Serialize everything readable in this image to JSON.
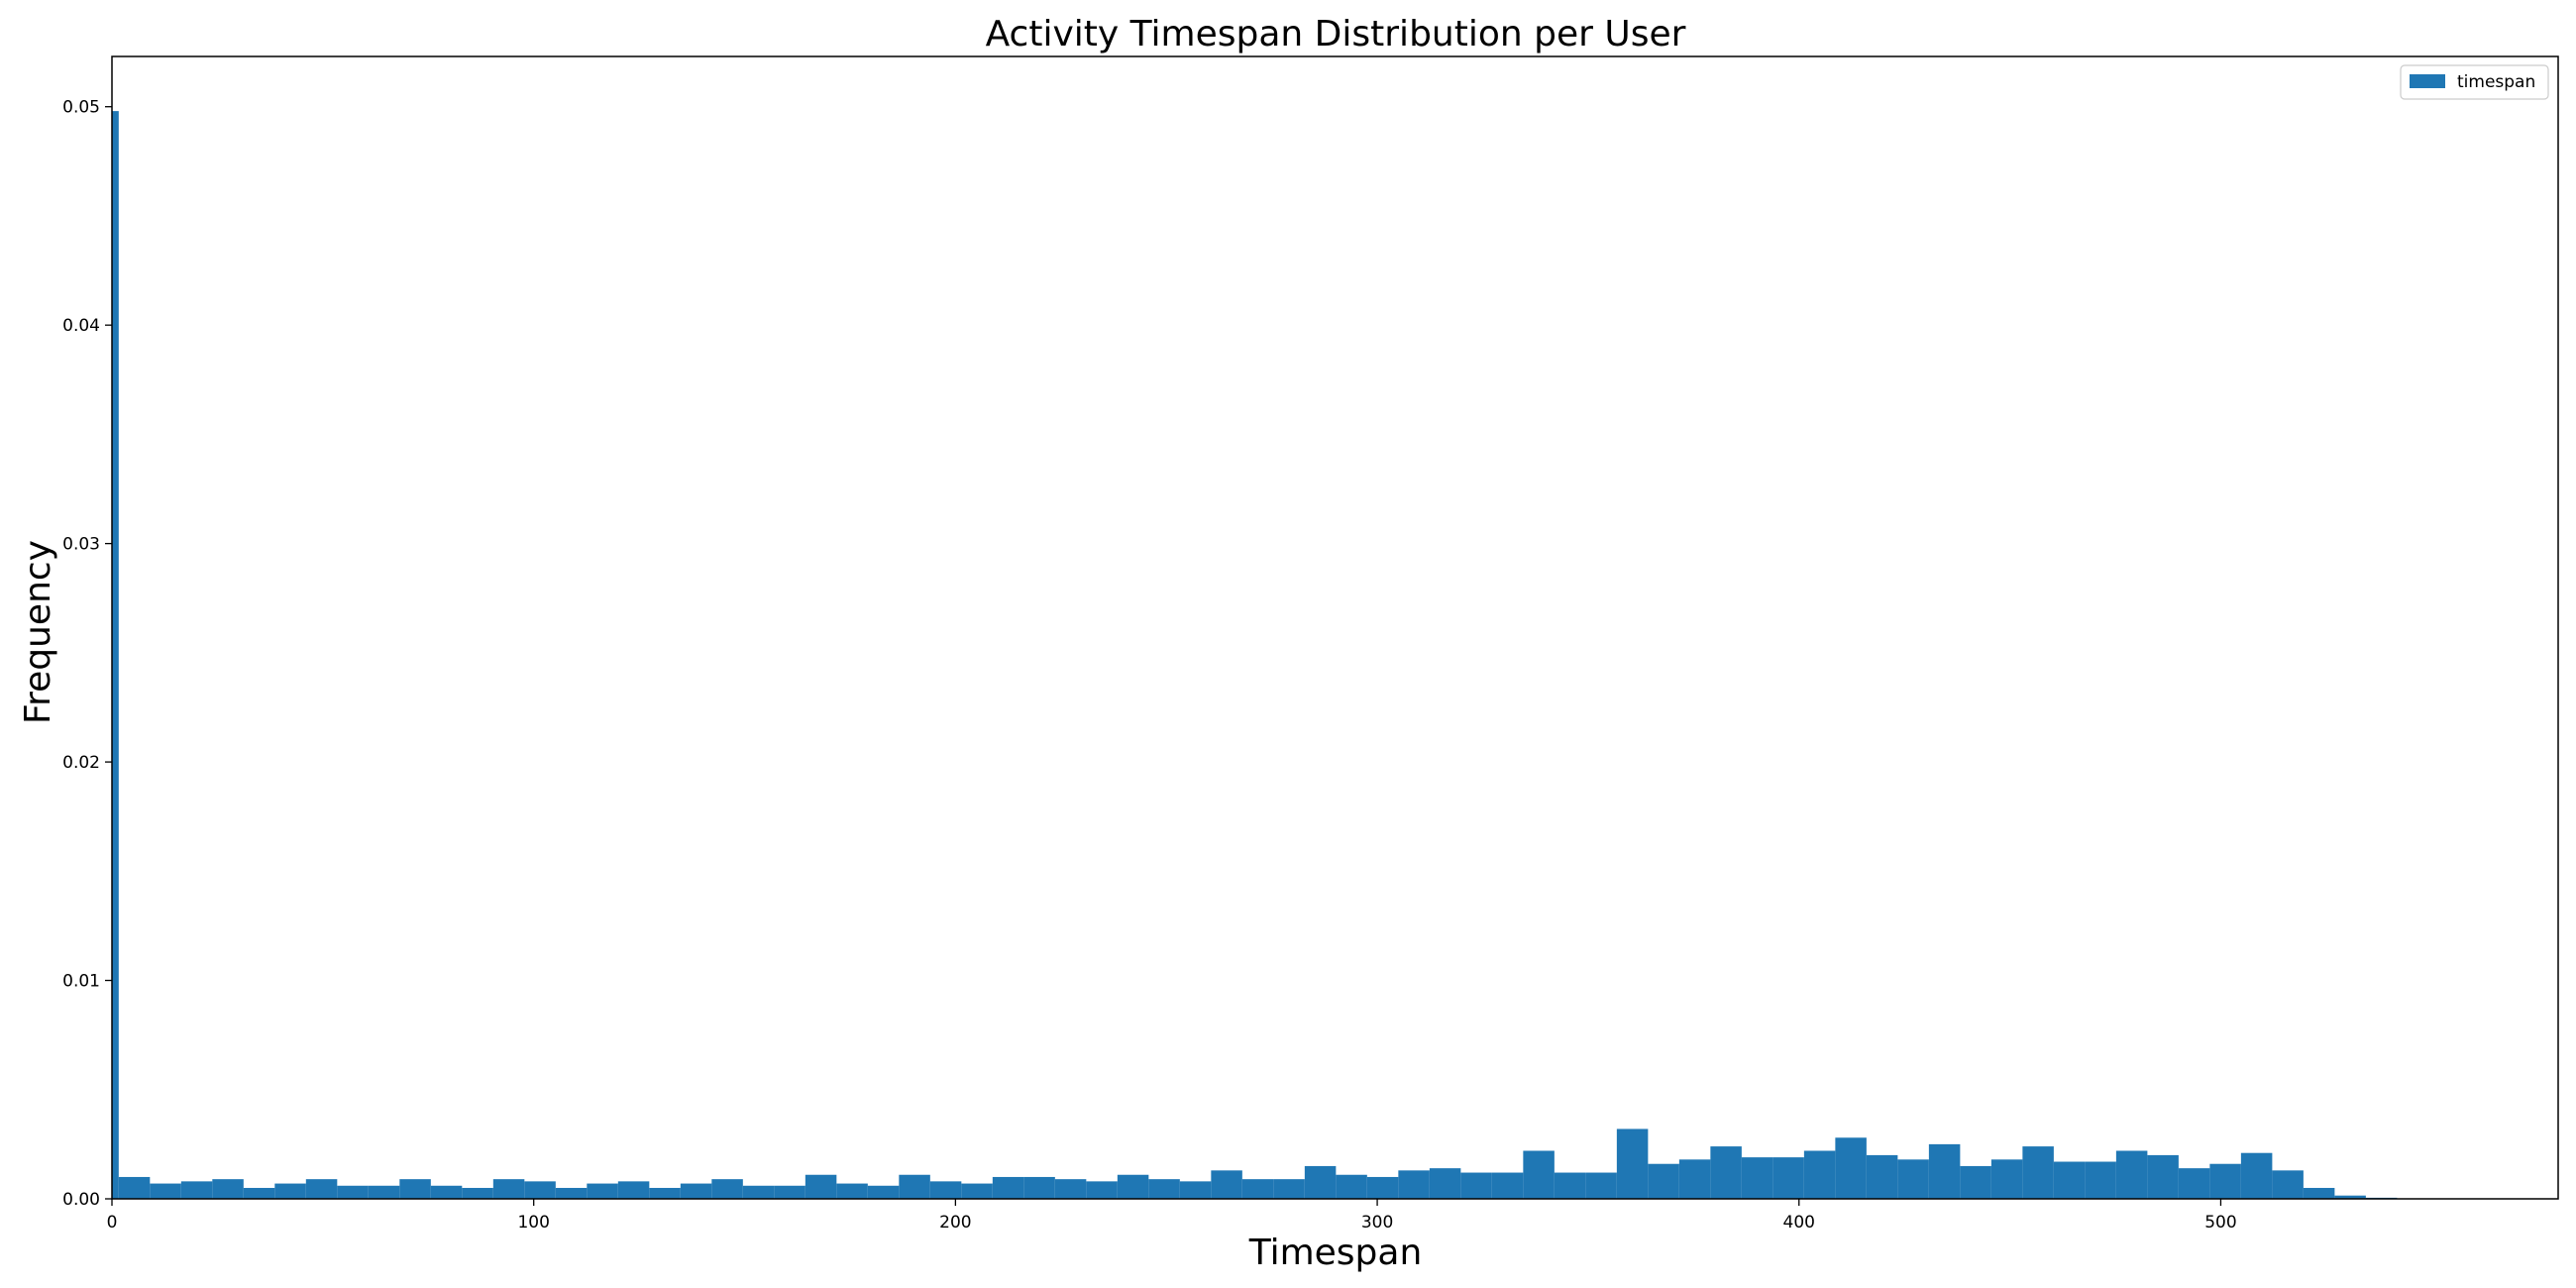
{
  "chart_data": {
    "type": "bar",
    "title": "Activity Timespan Distribution per User",
    "xlabel": "Timespan",
    "ylabel": "Frequency",
    "xlim": [
      0,
      580
    ],
    "ylim": [
      0,
      0.0523
    ],
    "xticks": [
      0,
      100,
      200,
      300,
      400,
      500
    ],
    "xtick_labels": [
      "0",
      "100",
      "200",
      "300",
      "400",
      "500"
    ],
    "yticks": [
      0.0,
      0.01,
      0.02,
      0.03,
      0.04,
      0.05
    ],
    "ytick_labels": [
      "0.00",
      "0.01",
      "0.02",
      "0.03",
      "0.04",
      "0.05"
    ],
    "grid": false,
    "legend": {
      "position": "top-right",
      "entries": [
        "timespan"
      ]
    },
    "series": [
      {
        "name": "timespan",
        "color": "#1f77b4",
        "spike": {
          "x_start": 0,
          "x_end": 1.6,
          "value": 0.0498
        },
        "bin_start": 1.6,
        "bin_width": 7.4,
        "values": [
          0.001,
          0.0007,
          0.0008,
          0.0009,
          0.0005,
          0.0007,
          0.0009,
          0.0006,
          0.0006,
          0.0009,
          0.0006,
          0.0005,
          0.0009,
          0.0008,
          0.0005,
          0.0007,
          0.0008,
          0.0005,
          0.0007,
          0.0009,
          0.0006,
          0.0006,
          0.0011,
          0.0007,
          0.0006,
          0.0011,
          0.0008,
          0.0007,
          0.001,
          0.001,
          0.0009,
          0.0008,
          0.0011,
          0.0009,
          0.0008,
          0.0013,
          0.0009,
          0.0009,
          0.0015,
          0.0011,
          0.001,
          0.0013,
          0.0014,
          0.0012,
          0.0012,
          0.0022,
          0.0012,
          0.0012,
          0.0032,
          0.0016,
          0.0018,
          0.0024,
          0.0019,
          0.0019,
          0.0022,
          0.0028,
          0.002,
          0.0018,
          0.0025,
          0.0015,
          0.0018,
          0.0024,
          0.0017,
          0.0017,
          0.0022,
          0.002,
          0.0014,
          0.0016,
          0.0021,
          0.0013,
          0.0005,
          0.00015,
          5e-05
        ]
      }
    ]
  }
}
